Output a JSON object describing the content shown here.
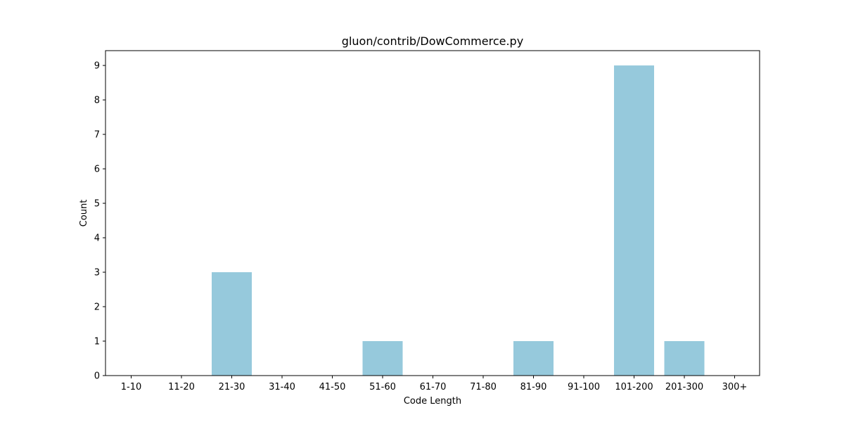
{
  "chart_data": {
    "type": "bar",
    "title": "gluon/contrib/DowCommerce.py",
    "xlabel": "Code Length",
    "ylabel": "Count",
    "categories": [
      "1-10",
      "11-20",
      "21-30",
      "31-40",
      "41-50",
      "51-60",
      "61-70",
      "71-80",
      "81-90",
      "91-100",
      "101-200",
      "201-300",
      "300+"
    ],
    "values": [
      0,
      0,
      3,
      0,
      0,
      1,
      0,
      0,
      1,
      0,
      9,
      1,
      0
    ],
    "ylim": [
      0,
      9.43
    ],
    "yticks": [
      0,
      1,
      2,
      3,
      4,
      5,
      6,
      7,
      8,
      9
    ],
    "bar_color": "#96c9dc",
    "grid": false,
    "legend": "none"
  }
}
